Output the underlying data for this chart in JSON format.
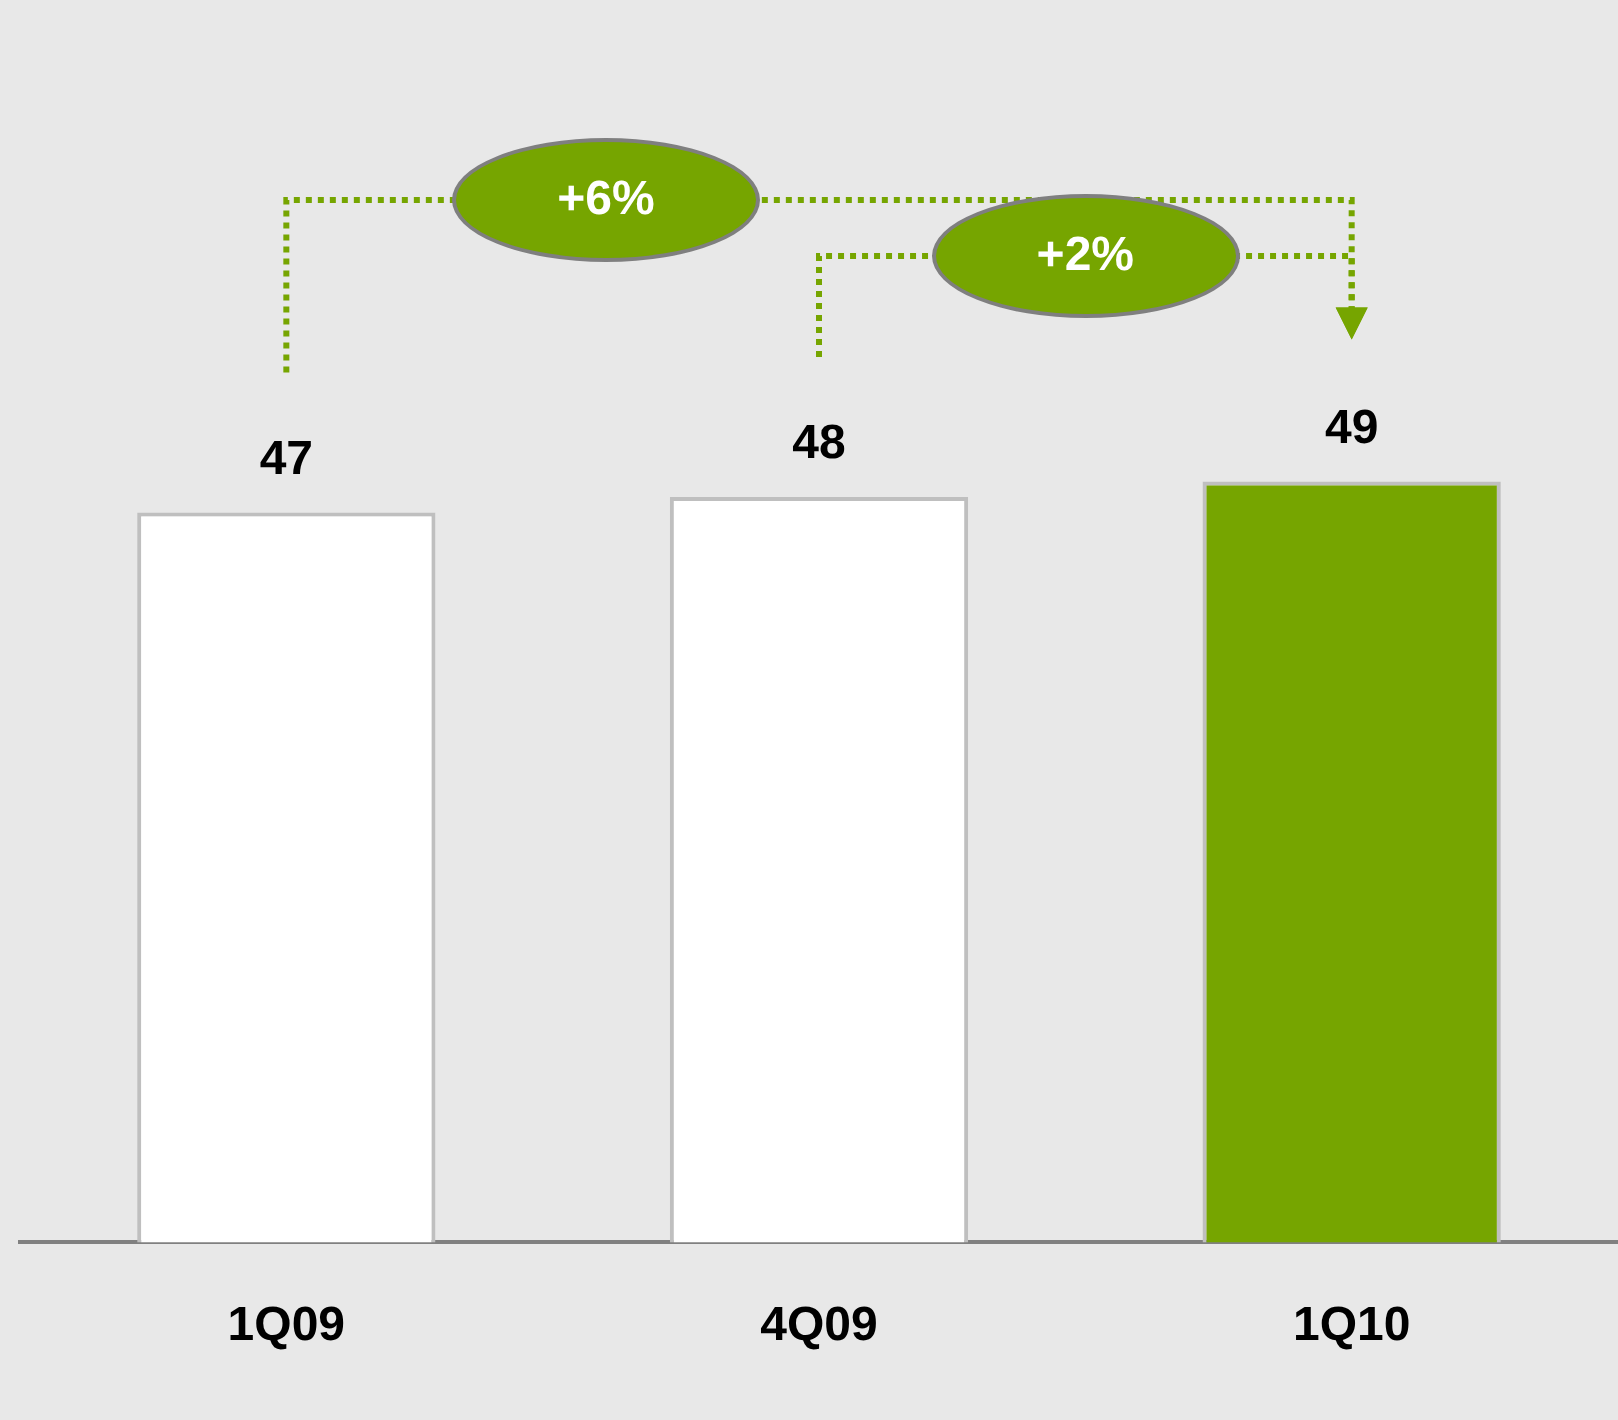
{
  "chart_data": {
    "type": "bar",
    "categories": [
      "1Q09",
      "4Q09",
      "1Q10"
    ],
    "values": [
      47,
      48,
      49
    ],
    "colors": [
      "#ffffff",
      "#ffffff",
      "#76a500"
    ],
    "ylim": [
      0,
      80
    ],
    "data_labels": true,
    "grid": false,
    "legend": false,
    "annotations": [
      "+6%",
      "+2%"
    ]
  }
}
